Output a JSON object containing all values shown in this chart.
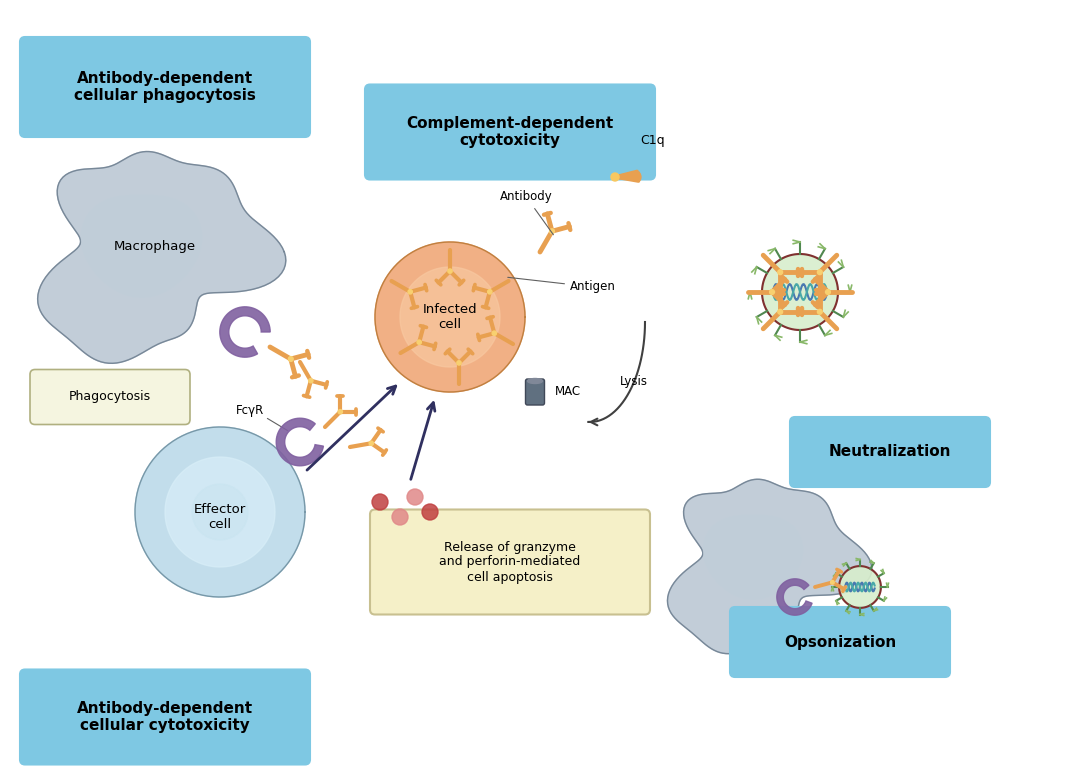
{
  "bg_color": "#ffffff",
  "title": "",
  "labels": {
    "adcp": "Antibody-dependent\ncellular phagocytosis",
    "cdc": "Complement-dependent\ncytotoxicity",
    "adcc": "Antibody-dependent\ncellular cytotoxicity",
    "neutralization": "Neutralization",
    "opsonization": "Opsonization",
    "phagocytosis": "Phagocytosis",
    "macrophage": "Macrophage",
    "infected_cell": "Infected\ncell",
    "effector_cell": "Effector\ncell",
    "antibody": "Antibody",
    "antigen": "Antigen",
    "c1q": "C1q",
    "mac": "MAC",
    "lysis": "Lysis",
    "fcyr": "FcγR",
    "granzyme": "Release of granzyme\nand perforin-mediated\ncell apoptosis"
  },
  "colors": {
    "light_blue_box": "#7ec8e3",
    "cream_box": "#f5f0d0",
    "macrophage": "#a8b8c8",
    "macrophage_inner": "#c0cdd8",
    "infected_cell": "#f0a878",
    "infected_cell_inner": "#f8c8a0",
    "effector_cell": "#b8d8e8",
    "effector_cell_inner": "#d8eef8",
    "receptor": "#8060a0",
    "antibody": "#e8a050",
    "virus": "#a8c890",
    "virus_border": "#406840",
    "virus_spike": "#508850",
    "spike_tip": "#88b868",
    "dna_blue": "#4878b0",
    "dna_cyan": "#48a8a8",
    "red_dot_dark": "#c04040",
    "red_dot_light": "#e08888",
    "mac_cylinder": "#607080",
    "arrow_color": "#404040",
    "text_color": "#202020",
    "box_border": "#c0d8e0"
  }
}
